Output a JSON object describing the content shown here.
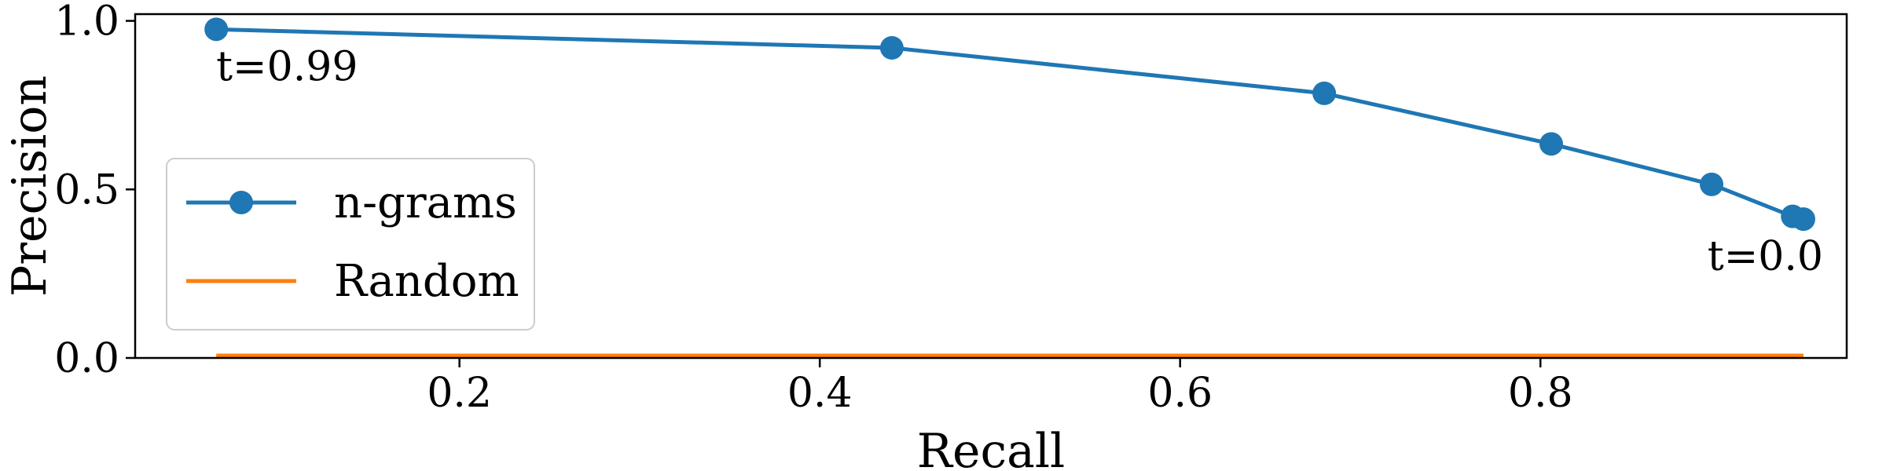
{
  "chart_data": {
    "type": "line",
    "xlabel": "Recall",
    "ylabel": "Precision",
    "xlim": [
      0.02,
      0.97
    ],
    "ylim": [
      0.0,
      1.02
    ],
    "xticks": [
      {
        "value": 0.2,
        "label": "0.2"
      },
      {
        "value": 0.4,
        "label": "0.4"
      },
      {
        "value": 0.6,
        "label": "0.6"
      },
      {
        "value": 0.8,
        "label": "0.8"
      }
    ],
    "yticks": [
      {
        "value": 0.0,
        "label": "0.0"
      },
      {
        "value": 0.5,
        "label": "0.5"
      },
      {
        "value": 1.0,
        "label": "1.0"
      }
    ],
    "grid": false,
    "legend_position": "center-left",
    "series": [
      {
        "name": "n-grams",
        "color": "#1f77b4",
        "marker": "circle",
        "x": [
          0.065,
          0.44,
          0.68,
          0.806,
          0.895,
          0.94,
          0.946
        ],
        "y": [
          0.975,
          0.92,
          0.785,
          0.635,
          0.515,
          0.42,
          0.412
        ]
      },
      {
        "name": "Random",
        "color": "#ff7f0e",
        "marker": "none",
        "x": [
          0.065,
          0.946
        ],
        "y": [
          0.007,
          0.007
        ]
      }
    ],
    "annotations": [
      {
        "text": "t=0.99",
        "x": 0.065,
        "y": 0.975,
        "placement": "below-right"
      },
      {
        "text": "t=0.0",
        "x": 0.946,
        "y": 0.412,
        "placement": "below-left"
      }
    ]
  }
}
